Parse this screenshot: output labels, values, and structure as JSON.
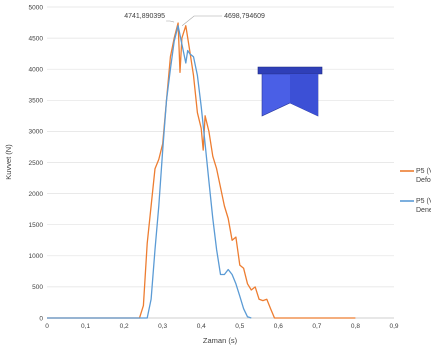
{
  "chart_data": {
    "type": "line",
    "xlabel": "Zaman (s)",
    "ylabel": "Kuvvet (N)",
    "xlim": [
      0,
      0.9
    ],
    "ylim": [
      0,
      5000
    ],
    "x_ticks": [
      "0",
      "0,1",
      "0,2",
      "0,3",
      "0,4",
      "0,5",
      "0,6",
      "0,7",
      "0,8",
      "0,9"
    ],
    "y_ticks": [
      "0",
      "500",
      "1000",
      "1500",
      "2000",
      "2500",
      "3000",
      "3500",
      "4000",
      "4500",
      "5000"
    ],
    "grid": "horizontal",
    "legend_position": "right",
    "series": [
      {
        "name": "P5 (V16) Deform",
        "legend_lines": [
          "P5 (V16",
          "Deform"
        ],
        "color": "#ED7D31",
        "points": [
          [
            0,
            0
          ],
          [
            0.24,
            0
          ],
          [
            0.25,
            200
          ],
          [
            0.26,
            1200
          ],
          [
            0.27,
            1800
          ],
          [
            0.28,
            2400
          ],
          [
            0.29,
            2550
          ],
          [
            0.3,
            2800
          ],
          [
            0.31,
            3500
          ],
          [
            0.32,
            4200
          ],
          [
            0.33,
            4500
          ],
          [
            0.34,
            4742
          ],
          [
            0.345,
            3950
          ],
          [
            0.35,
            4500
          ],
          [
            0.36,
            4700
          ],
          [
            0.37,
            4300
          ],
          [
            0.38,
            3900
          ],
          [
            0.39,
            3300
          ],
          [
            0.4,
            3050
          ],
          [
            0.405,
            2700
          ],
          [
            0.41,
            3250
          ],
          [
            0.42,
            3000
          ],
          [
            0.43,
            2600
          ],
          [
            0.44,
            2400
          ],
          [
            0.45,
            2100
          ],
          [
            0.46,
            1800
          ],
          [
            0.47,
            1600
          ],
          [
            0.48,
            1250
          ],
          [
            0.49,
            1300
          ],
          [
            0.5,
            850
          ],
          [
            0.51,
            800
          ],
          [
            0.52,
            550
          ],
          [
            0.53,
            450
          ],
          [
            0.54,
            500
          ],
          [
            0.55,
            300
          ],
          [
            0.56,
            280
          ],
          [
            0.57,
            300
          ],
          [
            0.58,
            150
          ],
          [
            0.59,
            0
          ],
          [
            0.8,
            0
          ]
        ]
      },
      {
        "name": "P5 (V16) Deney",
        "legend_lines": [
          "P5 (V16",
          "Deney"
        ],
        "color": "#5B9BD5",
        "points": [
          [
            0,
            0
          ],
          [
            0.26,
            0
          ],
          [
            0.27,
            300
          ],
          [
            0.28,
            1100
          ],
          [
            0.29,
            1800
          ],
          [
            0.3,
            2700
          ],
          [
            0.31,
            3500
          ],
          [
            0.32,
            4000
          ],
          [
            0.33,
            4450
          ],
          [
            0.34,
            4699
          ],
          [
            0.35,
            4400
          ],
          [
            0.36,
            4100
          ],
          [
            0.365,
            4300
          ],
          [
            0.37,
            4250
          ],
          [
            0.38,
            4200
          ],
          [
            0.39,
            3900
          ],
          [
            0.4,
            3400
          ],
          [
            0.41,
            2800
          ],
          [
            0.42,
            2200
          ],
          [
            0.43,
            1600
          ],
          [
            0.44,
            1100
          ],
          [
            0.45,
            700
          ],
          [
            0.46,
            700
          ],
          [
            0.47,
            780
          ],
          [
            0.48,
            700
          ],
          [
            0.49,
            550
          ],
          [
            0.5,
            350
          ],
          [
            0.51,
            150
          ],
          [
            0.52,
            20
          ],
          [
            0.53,
            0
          ]
        ]
      }
    ],
    "annotations": [
      {
        "text": "4741,890395",
        "x": 0.34,
        "y": 4742,
        "series": 0
      },
      {
        "text": "4698,794609",
        "x": 0.34,
        "y": 4699,
        "series": 1
      }
    ]
  },
  "inset": {
    "description_icon": "blue-die-shape",
    "top_color": "#3A4FD0",
    "body_color": "#4A5FE6"
  }
}
